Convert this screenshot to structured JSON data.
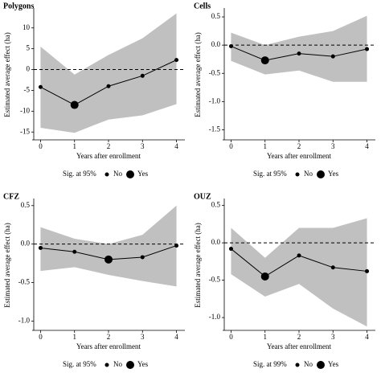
{
  "chart_data": [
    {
      "type": "line",
      "title": "Polygons",
      "x_label": "Years after enrollment",
      "y_label": "Estimated average effect (ha)",
      "x": [
        0,
        1,
        2,
        3,
        4
      ],
      "values": [
        -4.2,
        -8.5,
        -4.0,
        -1.5,
        2.3
      ],
      "upper": [
        5.5,
        -1.2,
        3.5,
        7.5,
        13.5
      ],
      "lower": [
        -14,
        -15.2,
        -12,
        -11,
        -8.3
      ],
      "significant": [
        false,
        true,
        false,
        false,
        false
      ],
      "xlim": [
        -0.2,
        4.2
      ],
      "xticks": [
        0,
        1,
        2,
        3,
        4
      ],
      "ylim": [
        -16.5,
        14
      ],
      "yticks": [
        -15,
        -10,
        -5,
        0,
        5,
        10
      ],
      "legend": {
        "title": "Sig. at 95%",
        "labels": [
          "No",
          "Yes"
        ]
      }
    },
    {
      "type": "line",
      "title": "Cells",
      "x_label": "Years after enrollment",
      "y_label": "Estimated average effect (ha)",
      "x": [
        0,
        1,
        2,
        3,
        4
      ],
      "values": [
        -0.02,
        -0.27,
        -0.15,
        -0.2,
        -0.07
      ],
      "upper": [
        0.22,
        0.0,
        0.15,
        0.25,
        0.52
      ],
      "lower": [
        -0.28,
        -0.52,
        -0.45,
        -0.65,
        -0.65
      ],
      "significant": [
        false,
        true,
        false,
        false,
        false
      ],
      "xlim": [
        -0.2,
        4.2
      ],
      "xticks": [
        0,
        1,
        2,
        3,
        4
      ],
      "ylim": [
        -1.65,
        0.6
      ],
      "yticks": [
        {
          "value": -1.5,
          "label": "-1.5"
        },
        {
          "value": -1,
          "label": "-1.0"
        },
        {
          "value": -0.5,
          "label": "-0.5"
        },
        {
          "value": 0,
          "label": "0.0"
        },
        {
          "value": 0.5,
          "label": "0.5"
        }
      ],
      "legend": {
        "title": "Sig. at 95%",
        "labels": [
          "No",
          "Yes"
        ]
      }
    },
    {
      "type": "line",
      "title": "CFZ",
      "x_label": "Years after enrollment",
      "y_label": "Estimated average effect (ha)",
      "x": [
        0,
        1,
        2,
        3,
        4
      ],
      "values": [
        -0.05,
        -0.1,
        -0.2,
        -0.17,
        -0.02
      ],
      "upper": [
        0.22,
        0.07,
        0.0,
        0.12,
        0.5
      ],
      "lower": [
        -0.35,
        -0.3,
        -0.4,
        -0.48,
        -0.55
      ],
      "significant": [
        false,
        false,
        true,
        false,
        false
      ],
      "xlim": [
        -0.2,
        4.2
      ],
      "xticks": [
        0,
        1,
        2,
        3,
        4
      ],
      "ylim": [
        -1.1,
        0.55
      ],
      "yticks": [
        {
          "value": -1,
          "label": "-1.0"
        },
        {
          "value": -0.5,
          "label": "-0.5"
        },
        {
          "value": 0,
          "label": "0.0"
        },
        {
          "value": 0.5,
          "label": "0.5"
        }
      ],
      "legend": {
        "title": "Sig. at 95%",
        "labels": [
          "No",
          "Yes"
        ]
      }
    },
    {
      "type": "line",
      "title": "OUZ",
      "x_label": "Years after enrollment",
      "y_label": "Estimated average effect (ha)",
      "x": [
        0,
        1,
        2,
        3,
        4
      ],
      "values": [
        -0.08,
        -0.45,
        -0.17,
        -0.33,
        -0.38
      ],
      "upper": [
        0.2,
        -0.2,
        0.2,
        0.2,
        0.33
      ],
      "lower": [
        -0.42,
        -0.72,
        -0.55,
        -0.88,
        -1.12
      ],
      "significant": [
        false,
        true,
        false,
        false,
        false
      ],
      "xlim": [
        -0.2,
        4.2
      ],
      "xticks": [
        0,
        1,
        2,
        3,
        4
      ],
      "ylim": [
        -1.15,
        0.55
      ],
      "yticks": [
        {
          "value": -1,
          "label": "-1.0"
        },
        {
          "value": -0.5,
          "label": "-0.5"
        },
        {
          "value": 0,
          "label": "0.0"
        },
        {
          "value": 0.5,
          "label": "0.5"
        }
      ],
      "legend": {
        "title": "Sig. at 99%",
        "labels": [
          "No",
          "Yes"
        ]
      }
    }
  ]
}
